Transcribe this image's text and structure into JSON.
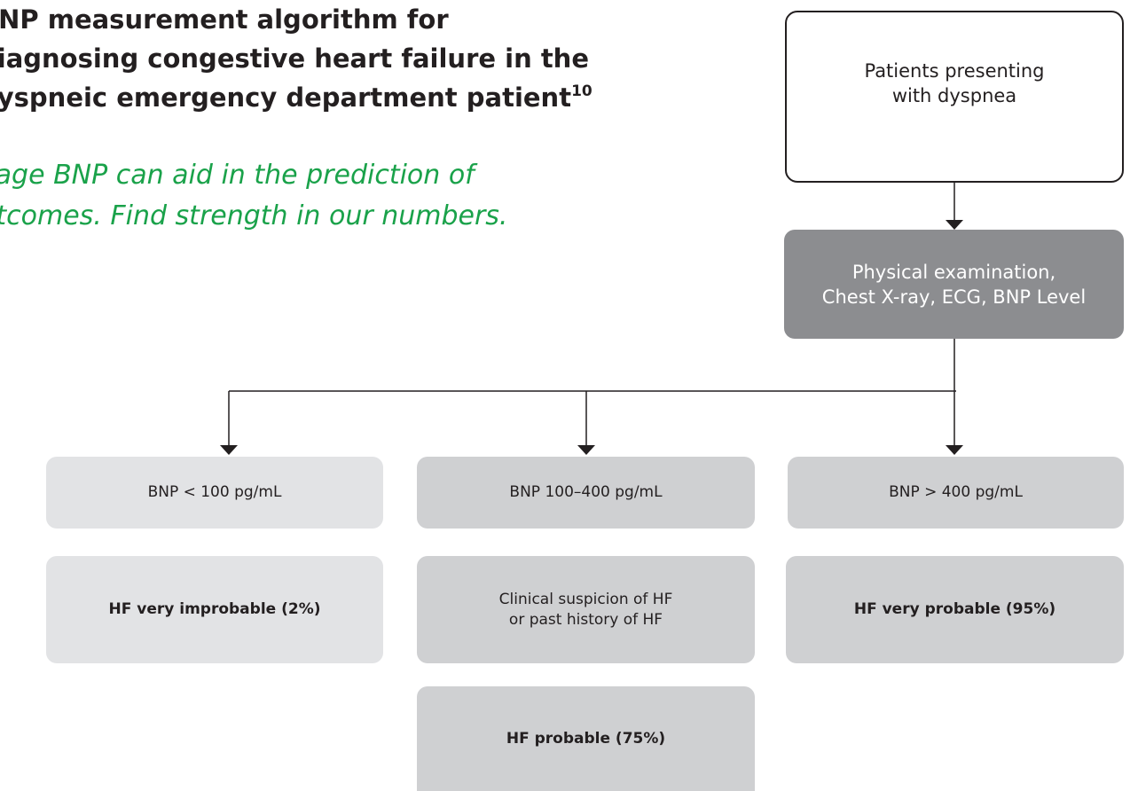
{
  "header": {
    "title": [
      "BNP measurement algorithm for",
      "diagnosing congestive heart failure in the",
      "dyspneic emergency department patient"
    ],
    "title_superscript": "10",
    "tagline": [
      "Triage BNP can aid in the prediction of",
      "outcomes. Find strength in our numbers."
    ]
  },
  "nodes": [
    {
      "label": [
        "Patients presenting",
        "with dyspnea"
      ]
    },
    {
      "label": [
        "Physical examination,",
        "Chest X-ray, ECG, BNP Level"
      ]
    },
    {
      "label": [
        "BNP < 100 pg/mL"
      ]
    },
    {
      "label": [
        "BNP 100–400 pg/mL"
      ]
    },
    {
      "label": [
        "BNP > 400 pg/mL"
      ]
    },
    {
      "label": [
        "HF very improbable (2%)"
      ]
    },
    {
      "label": [
        "Clinical suspicion of HF",
        "or past history of HF"
      ]
    },
    {
      "label": [
        "HF very probable (95%)"
      ]
    },
    {
      "label": [
        "HF probable (75%)"
      ]
    }
  ]
}
